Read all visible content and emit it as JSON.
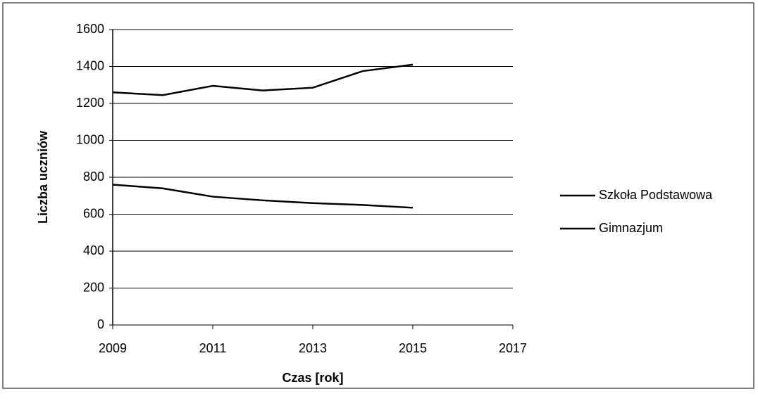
{
  "chart_data": {
    "type": "line",
    "x": [
      2009,
      2010,
      2011,
      2012,
      2013,
      2014,
      2015
    ],
    "series": [
      {
        "name": "Szkoła Podstawowa",
        "color": "#000000",
        "values": [
          1260,
          1245,
          1295,
          1270,
          1285,
          1375,
          1410
        ]
      },
      {
        "name": "Gimnazjum",
        "color": "#000000",
        "values": [
          760,
          740,
          695,
          675,
          660,
          650,
          635
        ]
      }
    ],
    "xlabel": "Czas [rok]",
    "ylabel": "Liczba uczniów",
    "xlim": [
      2009,
      2017
    ],
    "xticks": [
      2009,
      2011,
      2013,
      2015,
      2017
    ],
    "ylim": [
      0,
      1600
    ],
    "yticks": [
      0,
      200,
      400,
      600,
      800,
      1000,
      1200,
      1400,
      1600
    ],
    "grid": true,
    "legend": "right"
  }
}
